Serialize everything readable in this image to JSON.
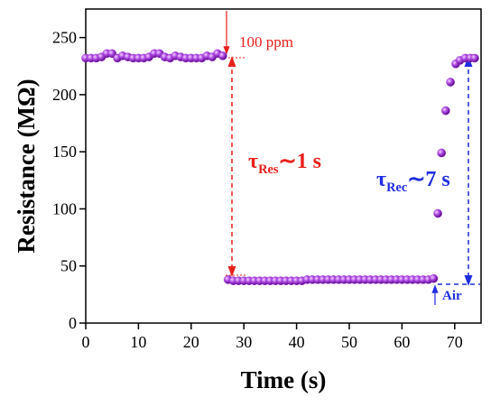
{
  "chart_data": {
    "type": "scatter",
    "xlabel": "Time (s)",
    "ylabel": "Resistance (MΩ)",
    "xlim": [
      0,
      75
    ],
    "xticks": [
      0,
      10,
      20,
      30,
      40,
      50,
      60,
      70
    ],
    "ylim": [
      0,
      275
    ],
    "yticks": [
      0,
      50,
      100,
      150,
      200,
      250
    ],
    "series": [
      {
        "color": "#9b2fd4",
        "x": [
          0,
          1,
          2,
          3,
          4,
          5,
          6,
          7,
          8,
          9,
          10,
          11,
          12,
          13,
          14,
          15,
          16,
          17,
          18,
          19,
          20,
          21,
          22,
          23,
          24,
          25,
          26,
          27,
          28,
          29,
          30,
          31,
          32,
          33,
          34,
          35,
          36,
          37,
          38,
          39,
          40,
          41,
          42,
          43,
          44,
          45,
          46,
          47,
          48,
          49,
          50,
          51,
          52,
          53,
          54,
          55,
          56,
          57,
          58,
          59,
          60,
          61,
          62,
          63,
          64,
          65,
          66,
          66.8,
          67.5,
          68.3,
          69.2,
          70.2,
          71,
          72,
          73,
          73.8
        ],
        "values": [
          232,
          232,
          232,
          233,
          236,
          236,
          232,
          234,
          233,
          232,
          232,
          232,
          233,
          236,
          236,
          233,
          232,
          234,
          233,
          232,
          232,
          232,
          232,
          234,
          233,
          236,
          234,
          38,
          37,
          37,
          37,
          37,
          37,
          37,
          37,
          37,
          37,
          37,
          37,
          37,
          37,
          37,
          38,
          38,
          38,
          38,
          38,
          38,
          38,
          38,
          38,
          38,
          38,
          38,
          38,
          38,
          38,
          38,
          38,
          38,
          38,
          38,
          38,
          38,
          38,
          38,
          39,
          96,
          149,
          186,
          211,
          227,
          230,
          232,
          232,
          232
        ]
      }
    ],
    "annotations": [
      {
        "text": "100 ppm",
        "color": "#e8201c"
      },
      {
        "text": "τ",
        "sub": "Res",
        "rest": "∼1 s",
        "color": "#e8201c"
      },
      {
        "text": "τ",
        "sub": "Rec",
        "rest": "∼7 s",
        "color": "#1f2de0"
      },
      {
        "text": "Air",
        "color": "#1f2de0"
      }
    ]
  }
}
